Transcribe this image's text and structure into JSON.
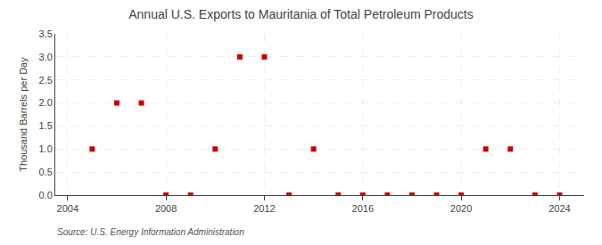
{
  "chart_data": {
    "type": "scatter",
    "title": "Annual U.S. Exports to Mauritania of Total Petroleum Products",
    "ylabel": "Thousand Barrels per Day",
    "annotation": "Source: U.S. Energy Information Administration",
    "x": [
      2005,
      2006,
      2007,
      2008,
      2009,
      2010,
      2011,
      2012,
      2013,
      2014,
      2015,
      2016,
      2017,
      2018,
      2019,
      2020,
      2021,
      2022,
      2023,
      2024
    ],
    "values": [
      1.0,
      2.0,
      2.0,
      0.0,
      0.0,
      1.0,
      3.0,
      3.0,
      0.0,
      1.0,
      0.0,
      0.0,
      0.0,
      0.0,
      0.0,
      0.0,
      1.0,
      1.0,
      0.0,
      0.0
    ],
    "color": "#cc0000",
    "marker": "square",
    "xlim": [
      2003.5,
      2025
    ],
    "xticks": [
      2004,
      2008,
      2012,
      2016,
      2020,
      2024
    ],
    "ylim": [
      0,
      3.5
    ],
    "yticks": [
      {
        "value": 0.0,
        "label": "0.0"
      },
      0.5,
      {
        "value": 1.0,
        "label": "1.0"
      },
      1.5,
      {
        "value": 2.0,
        "label": "2.0"
      },
      2.5,
      {
        "value": 3.0,
        "label": "3.0"
      },
      3.5
    ],
    "grid": true
  }
}
